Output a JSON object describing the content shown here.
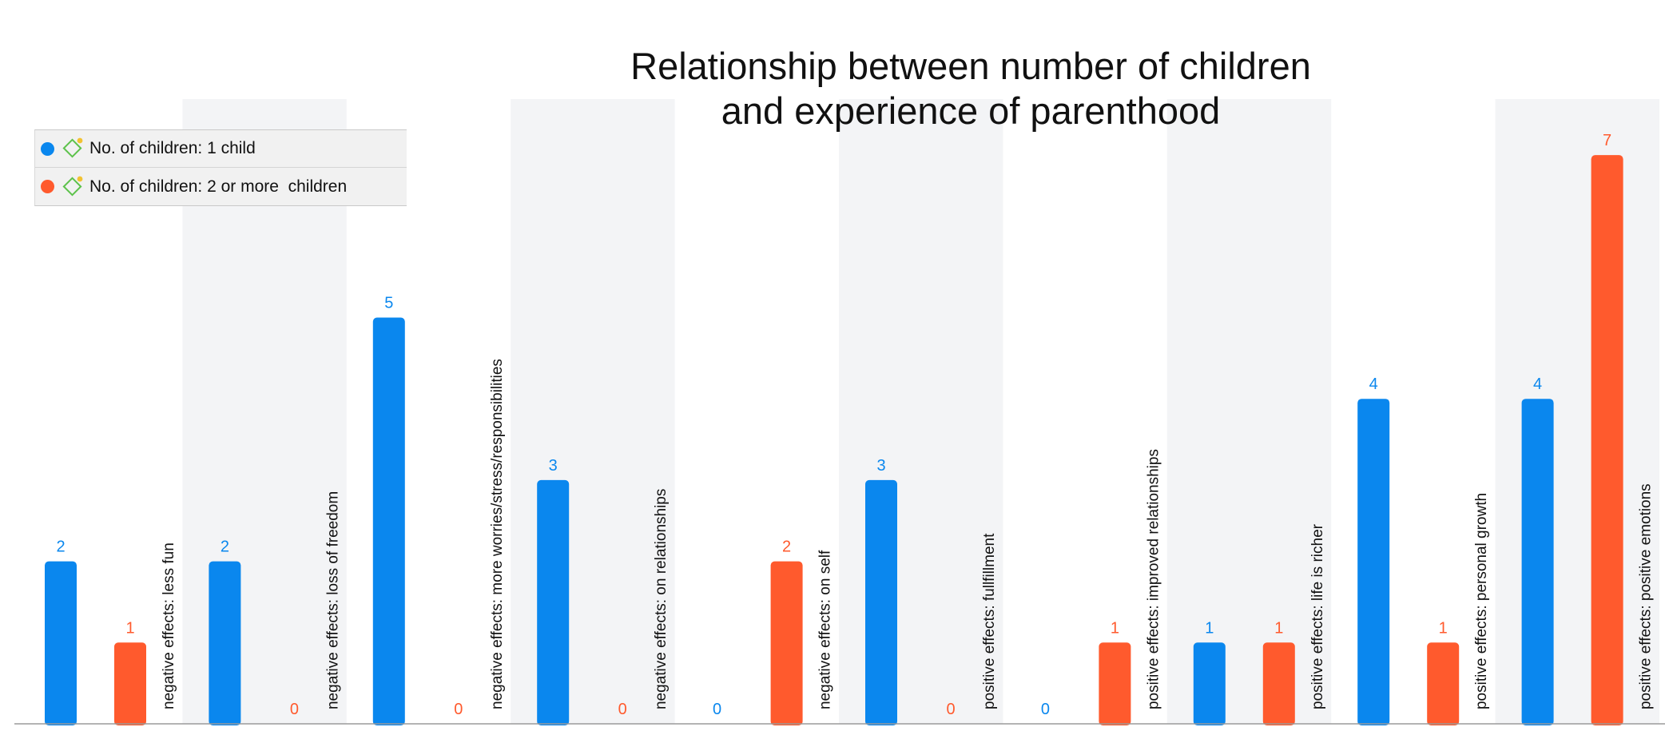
{
  "chart_data": {
    "type": "bar",
    "title_lines": [
      "Relationship between number of children",
      "and experience of parenthood"
    ],
    "categories": [
      "negative effects: less fun",
      "negative effects: loss of freedom",
      "negative effects: more worries/stress/responsibilities",
      "negative effects: on relationships",
      "negative effects: on self",
      "positive effects: fullfillment",
      "positive effects: improved relationships",
      "positive effects: life is richer",
      "positive effects: personal growth",
      "positive effects: positive emotions"
    ],
    "series": [
      {
        "name": "No. of children: 1 child",
        "color": "#0A87EE",
        "values": [
          2,
          2,
          5,
          3,
          0,
          3,
          0,
          1,
          4,
          4
        ]
      },
      {
        "name": "No. of children: 2 or more  children",
        "color": "#FF5A2D",
        "values": [
          1,
          0,
          0,
          0,
          2,
          0,
          1,
          1,
          1,
          7
        ]
      }
    ],
    "ylim": [
      0,
      7
    ],
    "xlabel": "",
    "ylabel": "",
    "grid": false,
    "legend_position": "top-left",
    "data_labels": true,
    "label_colors": {
      "series1": "#0A87EE",
      "series2": "#FF5A2D"
    }
  },
  "legend": {
    "icon": "code-diamond-icon",
    "items": [
      {
        "label": "No. of children: 1 child",
        "color": "#0A87EE"
      },
      {
        "label": "No. of children: 2 or more  children",
        "color": "#FF5A2D"
      }
    ]
  }
}
